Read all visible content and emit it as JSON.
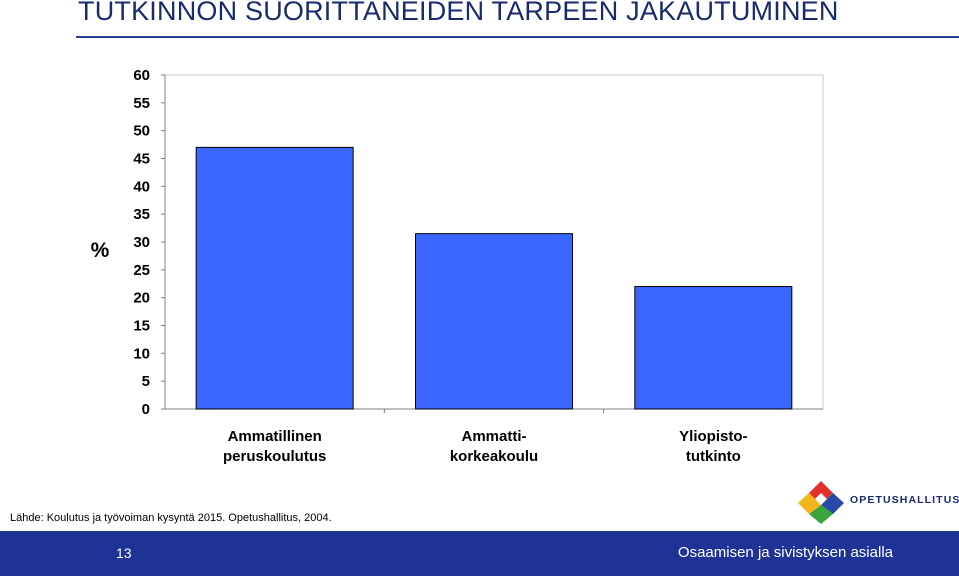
{
  "slide": {
    "title": "TUTKINNON SUORITTANEIDEN TARPEEN JAKAUTUMINEN",
    "source": "Lähde: Koulutus ja työvoiman kysyntä 2015. Opetushallitus, 2004.",
    "logo_text": "OPETUSHALLITUS",
    "page_number": "13",
    "footer_text": "Osaamisen ja sivistyksen asialla"
  },
  "colors": {
    "bar": "#3a66ff",
    "footer": "#1f3396",
    "title": "#1a2a6e"
  },
  "chart_data": {
    "type": "bar",
    "title": "",
    "ylabel": "%",
    "ylim": [
      0,
      60
    ],
    "yticks": [
      "0",
      "5",
      "10",
      "15",
      "20",
      "25",
      "30",
      "35",
      "40",
      "45",
      "50",
      "55",
      "60"
    ],
    "grid": false,
    "categories": [
      [
        "Ammatillinen",
        "peruskoulutus"
      ],
      [
        "Ammatti-",
        "korkeakoulu"
      ],
      [
        "Yliopisto-",
        "tutkinto"
      ]
    ],
    "values": [
      47,
      31.5,
      22
    ]
  }
}
